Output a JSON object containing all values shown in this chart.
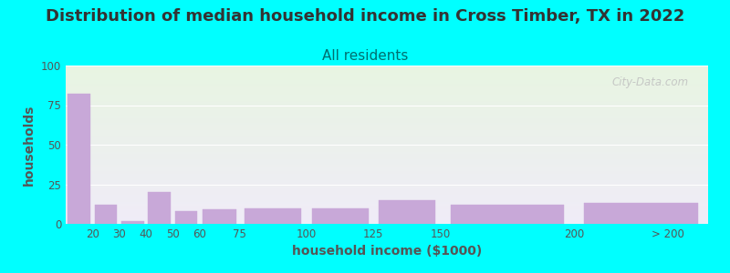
{
  "title": "Distribution of median household income in Cross Timber, TX in 2022",
  "subtitle": "All residents",
  "xlabel": "household income ($1000)",
  "ylabel": "households",
  "background_color": "#00FFFF",
  "plot_bg_top": "#e8f5e2",
  "plot_bg_bottom": "#f0ecf8",
  "bar_color": "#c8a8d8",
  "bar_edgecolor": "#c8a8d8",
  "categories": [
    "20",
    "30",
    "40",
    "50",
    "60",
    "75",
    "100",
    "125",
    "150",
    "200",
    "> 200"
  ],
  "values": [
    82,
    12,
    2,
    20,
    8,
    9,
    10,
    10,
    15,
    12,
    13
  ],
  "bar_lefts": [
    10,
    20,
    30,
    40,
    50,
    60,
    75,
    100,
    125,
    150,
    200
  ],
  "bar_widths": [
    10,
    10,
    10,
    10,
    10,
    15,
    25,
    25,
    25,
    50,
    50
  ],
  "xlim": [
    10,
    250
  ],
  "xtick_positions": [
    20,
    30,
    40,
    50,
    60,
    75,
    100,
    125,
    150,
    200,
    235
  ],
  "xtick_labels": [
    "20",
    "30",
    "40",
    "50",
    "60",
    "75",
    "100",
    "125",
    "150",
    "200",
    "> 200"
  ],
  "ylim": [
    0,
    100
  ],
  "yticks": [
    0,
    25,
    50,
    75,
    100
  ],
  "watermark": "City-Data.com",
  "title_fontsize": 13,
  "subtitle_fontsize": 11,
  "subtitle_color": "#007070",
  "axis_label_fontsize": 10,
  "tick_fontsize": 8.5,
  "tick_color": "#555555",
  "label_color": "#555555"
}
